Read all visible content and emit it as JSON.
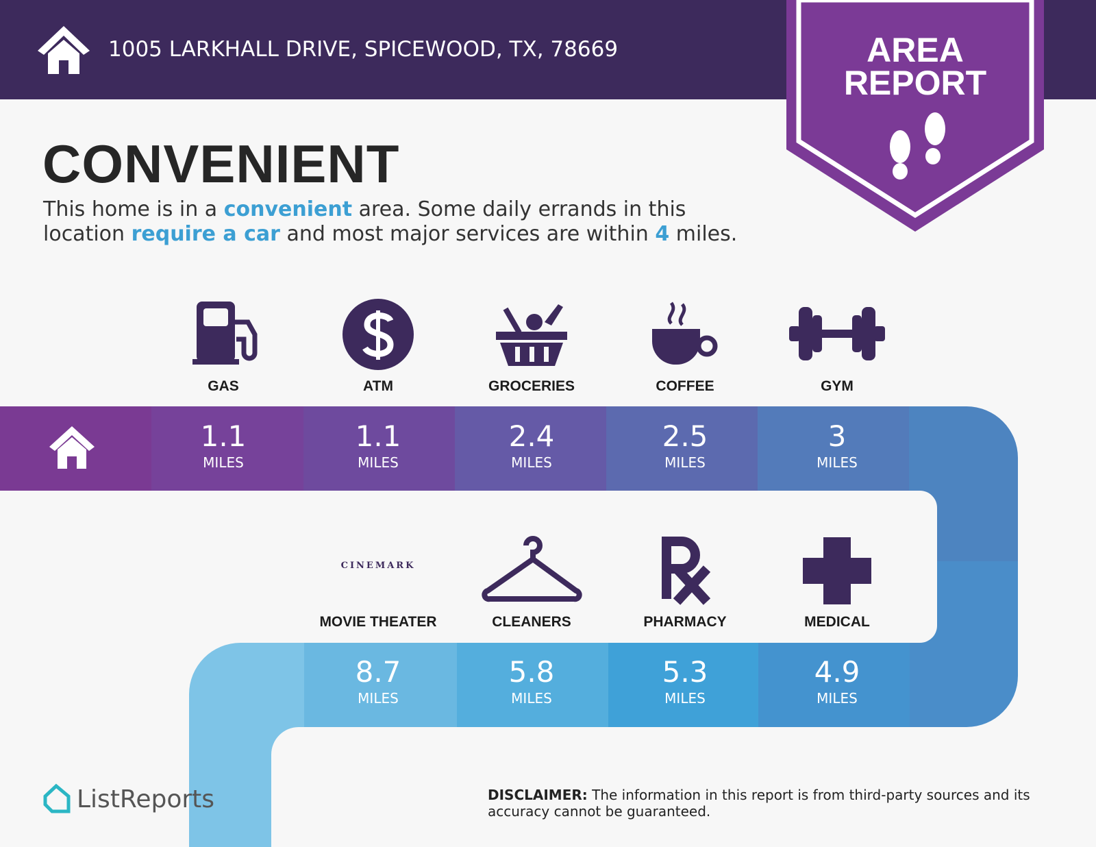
{
  "header": {
    "address": "1005 LARKHALL DRIVE, SPICEWOOD, TX, 78669",
    "badge_lines": [
      "AREA",
      "REPORT"
    ]
  },
  "title": "CONVENIENT",
  "description": [
    [
      {
        "text": "This home is in a "
      },
      {
        "text": "convenient",
        "emphasis": true
      },
      {
        "text": " area. Some daily errands in this"
      }
    ],
    [
      {
        "text": "location "
      },
      {
        "text": "require a car",
        "emphasis": true
      },
      {
        "text": " and most major services are within "
      },
      {
        "text": "4",
        "emphasis": true
      },
      {
        "text": " miles."
      }
    ]
  ],
  "amenities": [
    [
      {
        "label": "GAS",
        "distance": 1.1,
        "unit": "MILES"
      },
      {
        "label": "ATM",
        "distance": 1.1,
        "unit": "MILES"
      },
      {
        "label": "GROCERIES",
        "distance": 2.4,
        "unit": "MILES"
      },
      {
        "label": "COFFEE",
        "distance": 2.5,
        "unit": "MILES"
      },
      {
        "label": "GYM",
        "distance": 3,
        "unit": "MILES"
      }
    ],
    [
      {
        "label": "MOVIE THEATER",
        "logo": "CINEMARK",
        "distance": 8.7,
        "unit": "MILES"
      },
      {
        "label": "CLEANERS",
        "distance": 5.8,
        "unit": "MILES"
      },
      {
        "label": "PHARMACY",
        "distance": 5.3,
        "unit": "MILES"
      },
      {
        "label": "MEDICAL",
        "distance": 4.9,
        "unit": "MILES"
      }
    ]
  ],
  "footer": {
    "brand": "ListReports",
    "disclaimer_label": "DISCLAIMER:",
    "disclaimer": "The information in this report is from third-party sources and its accuracy cannot be guaranteed."
  }
}
